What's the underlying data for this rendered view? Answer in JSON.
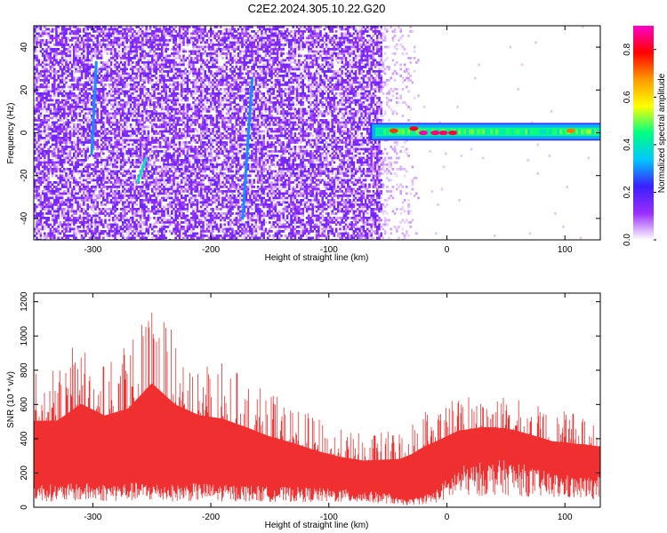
{
  "figure": {
    "title": "C2E2.2024.305.10.22.G20"
  },
  "chart_data": [
    {
      "type": "heatmap",
      "xlabel": "Height of straight line (km)",
      "ylabel": "Frequency (Hz)",
      "xlim": [
        -350,
        130
      ],
      "ylim": [
        -50,
        50
      ],
      "x_ticks": [
        -300,
        -200,
        -100,
        0,
        100
      ],
      "y_ticks": [
        -40,
        -20,
        0,
        20,
        40
      ],
      "x_tick_labels": [
        "-300",
        "-200",
        "-100",
        "0",
        "100"
      ],
      "y_tick_labels": [
        "-40",
        "-20",
        "0",
        "20",
        "40"
      ],
      "colorbar": {
        "label": "Normalized spectral amplitude",
        "range": [
          0.0,
          0.9
        ],
        "ticks": [
          0.0,
          0.2,
          0.4,
          0.6,
          0.8
        ],
        "tick_labels": [
          "0.0",
          "0.2",
          "0.4",
          "0.6",
          "0.8"
        ],
        "colormap": [
          "#ffffff",
          "#9a2cff",
          "#3a20ff",
          "#00c8ff",
          "#00ff80",
          "#ffff00",
          "#ff9900",
          "#ff0000",
          "#ff00c8"
        ]
      },
      "noise_region": {
        "x_range": [
          -350,
          -55
        ],
        "level": 0.1
      },
      "signal_band": {
        "x_range": [
          -65,
          130
        ],
        "center_freq": 0.5,
        "half_width": 3.5,
        "level": 0.45
      },
      "hot_spots": [
        {
          "x": -45,
          "y": 1,
          "level": 0.75
        },
        {
          "x": -28,
          "y": 2,
          "level": 0.8
        },
        {
          "x": -20,
          "y": 0,
          "level": 0.88
        },
        {
          "x": -10,
          "y": 0,
          "level": 0.85
        },
        {
          "x": -3,
          "y": 0,
          "level": 0.85
        },
        {
          "x": 5,
          "y": 0,
          "level": 0.82
        },
        {
          "x": 105,
          "y": 1,
          "level": 0.7
        }
      ],
      "streaks": [
        {
          "x0": -301,
          "y0": -10,
          "x1": -297,
          "y1": 33,
          "level": 0.3
        },
        {
          "x0": -262,
          "y0": -23,
          "x1": -255,
          "y1": -12,
          "level": 0.4
        },
        {
          "x0": -173,
          "y0": -40,
          "x1": -165,
          "y1": 25,
          "level": 0.3
        }
      ]
    },
    {
      "type": "area",
      "xlabel": "Height of straight line (km)",
      "ylabel": "SNR (10 * v/v)",
      "xlim": [
        -350,
        130
      ],
      "ylim": [
        0,
        1250
      ],
      "x_ticks": [
        -300,
        -200,
        -100,
        0,
        100
      ],
      "y_ticks": [
        0,
        200,
        400,
        600,
        800,
        1000,
        1200
      ],
      "x_tick_labels": [
        "-300",
        "-200",
        "-100",
        "0",
        "100"
      ],
      "y_tick_labels": [
        "0",
        "200",
        "400",
        "600",
        "800",
        "1000",
        "1200"
      ],
      "color": "#f03030",
      "envelope": {
        "x": [
          -350,
          -330,
          -310,
          -290,
          -270,
          -250,
          -230,
          -210,
          -190,
          -170,
          -150,
          -130,
          -110,
          -90,
          -70,
          -50,
          -40,
          -30,
          -20,
          -10,
          0,
          10,
          20,
          30,
          40,
          50,
          60,
          70,
          80,
          90,
          100,
          110,
          120,
          130
        ],
        "low": [
          120,
          110,
          120,
          115,
          120,
          120,
          110,
          120,
          110,
          110,
          100,
          100,
          95,
          90,
          80,
          70,
          40,
          40,
          60,
          80,
          140,
          200,
          210,
          220,
          230,
          230,
          220,
          200,
          180,
          170,
          160,
          150,
          150,
          150
        ],
        "high": [
          820,
          830,
          1000,
          880,
          950,
          1220,
          1000,
          880,
          850,
          760,
          670,
          600,
          520,
          460,
          430,
          450,
          480,
          530,
          590,
          630,
          640,
          650,
          660,
          670,
          660,
          650,
          630,
          610,
          590,
          560,
          560,
          550,
          540,
          520
        ]
      }
    }
  ]
}
